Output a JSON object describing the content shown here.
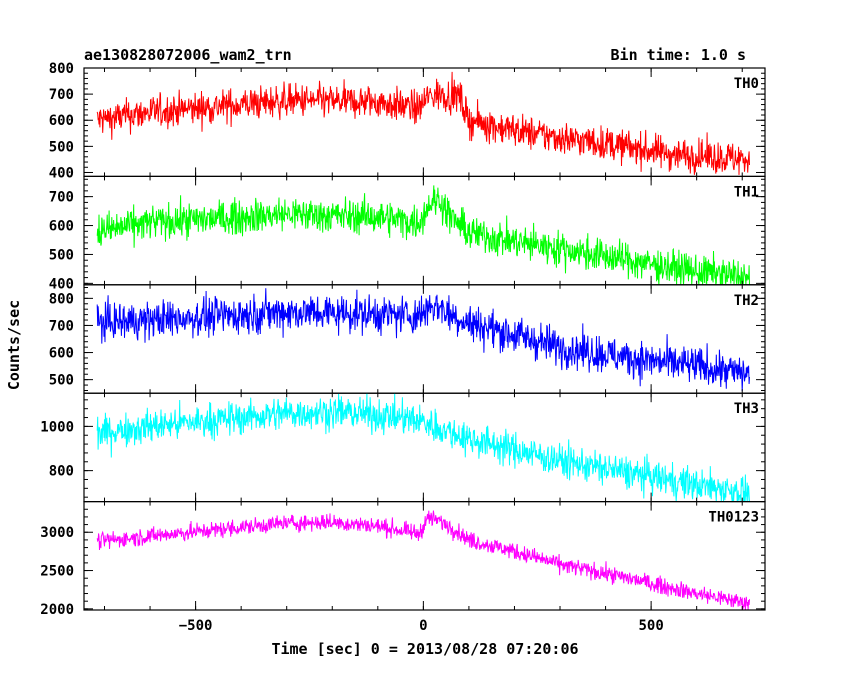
{
  "header": {
    "title": "ae130828072006_wam2_trn",
    "bin_time": "Bin time: 1.0 s"
  },
  "chart_data": {
    "type": "line",
    "xlabel": "Time [sec] 0 = 2013/08/28 07:20:06",
    "ylabel": "Counts/sec",
    "xlim": [
      -745,
      750
    ],
    "x_ticks": [
      -500,
      0,
      500
    ],
    "x_tick_labels": [
      "−500",
      "0",
      "500"
    ],
    "data_range_x": [
      -716,
      716
    ],
    "panels": [
      {
        "name": "TH0",
        "color": "#ff0000",
        "ylim": [
          385,
          800
        ],
        "y_ticks": [
          400,
          500,
          600,
          700,
          800
        ],
        "noise": 32,
        "trend": [
          [
            -716,
            600
          ],
          [
            -600,
            630
          ],
          [
            -300,
            675
          ],
          [
            -100,
            670
          ],
          [
            -10,
            645
          ],
          [
            10,
            690
          ],
          [
            40,
            700
          ],
          [
            65,
            690
          ],
          [
            80,
            650
          ],
          [
            100,
            600
          ],
          [
            150,
            580
          ],
          [
            250,
            545
          ],
          [
            400,
            510
          ],
          [
            550,
            470
          ],
          [
            716,
            450
          ]
        ],
        "flare": {
          "center": 80,
          "width": 10,
          "amp": 40
        }
      },
      {
        "name": "TH1",
        "color": "#00ff00",
        "ylim": [
          395,
          770
        ],
        "y_ticks": [
          400,
          500,
          600,
          700
        ],
        "noise": 30,
        "trend": [
          [
            -716,
            580
          ],
          [
            -600,
            610
          ],
          [
            -300,
            640
          ],
          [
            -100,
            630
          ],
          [
            -10,
            610
          ],
          [
            15,
            680
          ],
          [
            35,
            690
          ],
          [
            60,
            630
          ],
          [
            100,
            575
          ],
          [
            200,
            545
          ],
          [
            300,
            520
          ],
          [
            450,
            480
          ],
          [
            600,
            440
          ],
          [
            716,
            420
          ]
        ],
        "flare": null
      },
      {
        "name": "TH2",
        "color": "#0000ff",
        "ylim": [
          450,
          850
        ],
        "y_ticks": [
          500,
          600,
          700,
          800
        ],
        "noise": 35,
        "trend": [
          [
            -716,
            710
          ],
          [
            -600,
            720
          ],
          [
            -300,
            750
          ],
          [
            -150,
            745
          ],
          [
            -10,
            735
          ],
          [
            15,
            775
          ],
          [
            35,
            770
          ],
          [
            60,
            740
          ],
          [
            100,
            710
          ],
          [
            200,
            665
          ],
          [
            300,
            620
          ],
          [
            450,
            580
          ],
          [
            600,
            550
          ],
          [
            716,
            520
          ]
        ],
        "flare": null
      },
      {
        "name": "TH3",
        "color": "#00ffff",
        "ylim": [
          660,
          1150
        ],
        "y_ticks": [
          800,
          1000
        ],
        "noise": 38,
        "trend": [
          [
            -716,
            970
          ],
          [
            -600,
            1000
          ],
          [
            -300,
            1060
          ],
          [
            -180,
            1065
          ],
          [
            -50,
            1040
          ],
          [
            0,
            1020
          ],
          [
            50,
            980
          ],
          [
            100,
            945
          ],
          [
            200,
            895
          ],
          [
            300,
            845
          ],
          [
            450,
            790
          ],
          [
            600,
            735
          ],
          [
            716,
            700
          ]
        ],
        "flare": null
      },
      {
        "name": "TH0123",
        "color": "#ff00ff",
        "ylim": [
          1985,
          3400
        ],
        "y_ticks": [
          2000,
          2500,
          3000
        ],
        "noise": 55,
        "trend": [
          [
            -716,
            2880
          ],
          [
            -600,
            2950
          ],
          [
            -300,
            3120
          ],
          [
            -200,
            3130
          ],
          [
            -100,
            3080
          ],
          [
            -10,
            2980
          ],
          [
            10,
            3190
          ],
          [
            35,
            3150
          ],
          [
            65,
            3050
          ],
          [
            100,
            2900
          ],
          [
            200,
            2750
          ],
          [
            300,
            2580
          ],
          [
            450,
            2400
          ],
          [
            600,
            2200
          ],
          [
            716,
            2070
          ]
        ],
        "flare": null
      }
    ]
  }
}
